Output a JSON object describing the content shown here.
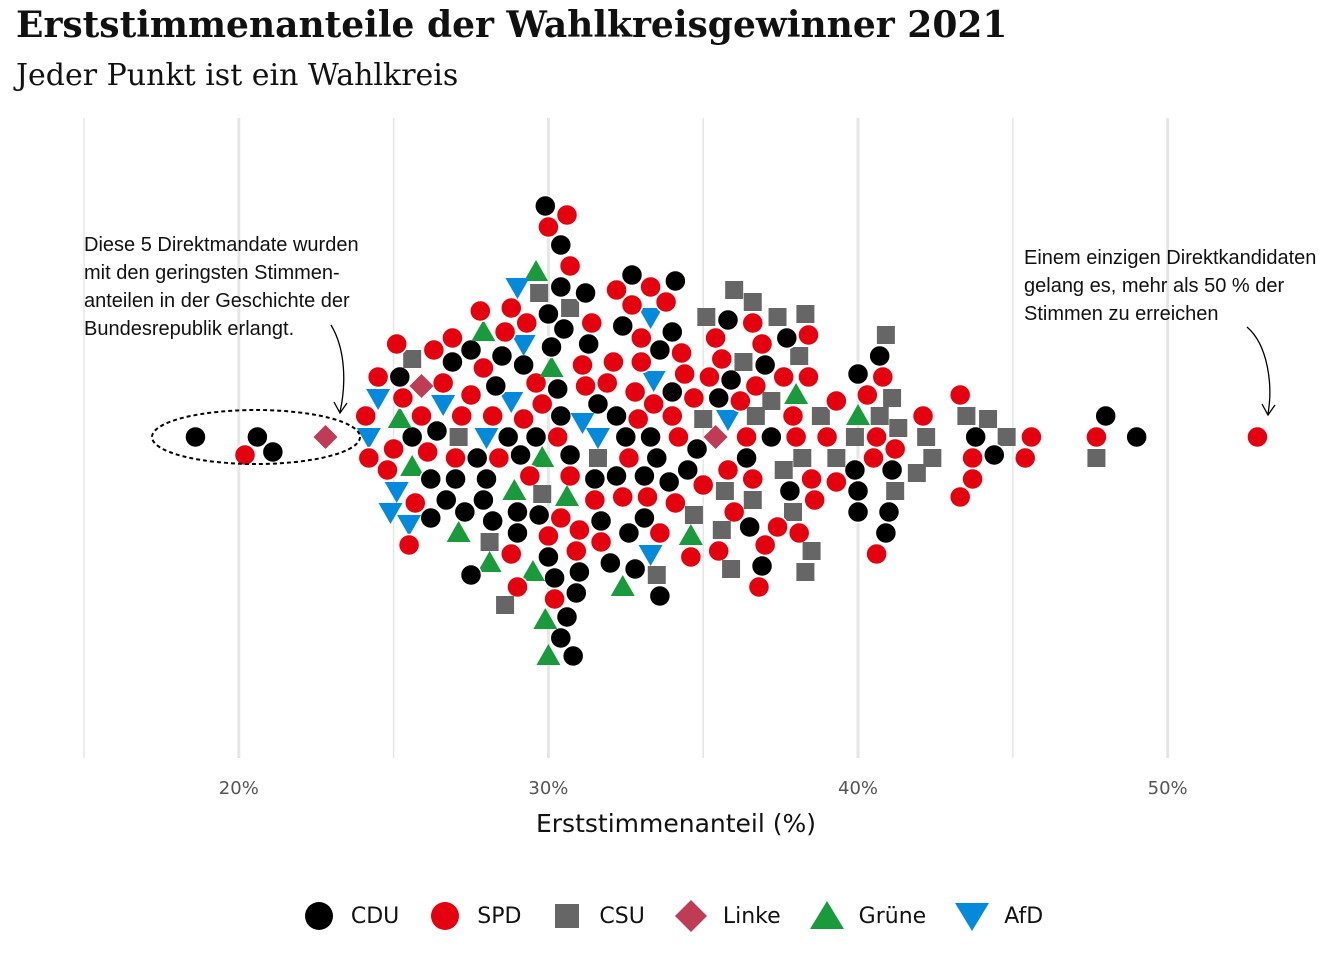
{
  "title": "Erststimmenanteile der Wahlkreisgewinner 2021",
  "subtitle": "Jeder Punkt ist ein Wahlkreis",
  "annotations": {
    "left": [
      "Diese 5 Direktmandate wurden",
      "mit den geringsten Stimmen-",
      "anteilen in der Geschichte der",
      "Bundesrepublik erlangt."
    ],
    "right": [
      "Einem einzigen Direktkandidaten",
      "gelang es, mehr als 50 % der",
      "Stimmen zu erreichen"
    ]
  },
  "parties": [
    {
      "key": "CDU",
      "label": "CDU",
      "shape": "circle",
      "color": "#000000"
    },
    {
      "key": "SPD",
      "label": "SPD",
      "shape": "circle",
      "color": "#e3000f"
    },
    {
      "key": "CSU",
      "label": "CSU",
      "shape": "square",
      "color": "#666666"
    },
    {
      "key": "Linke",
      "label": "Linke",
      "shape": "diamond",
      "color": "#be3c55"
    },
    {
      "key": "Gruene",
      "label": "Grüne",
      "shape": "triangle-up",
      "color": "#1a9a3c"
    },
    {
      "key": "AfD",
      "label": "AfD",
      "shape": "triangle-down",
      "color": "#0489db"
    }
  ],
  "chart_data": {
    "type": "scatter",
    "title": "Erststimmenanteile der Wahlkreisgewinner 2021",
    "subtitle": "Jeder Punkt ist ein Wahlkreis",
    "xlabel": "Erststimmenanteil (%)",
    "ylabel": "",
    "xlim": [
      15,
      53.5
    ],
    "x_ticks": [
      20,
      30,
      40,
      50
    ],
    "x_tick_labels": [
      "20%",
      "30%",
      "40%",
      "50%"
    ],
    "grid": "vertical",
    "legend_position": "bottom",
    "series": [
      {
        "name": "CDU",
        "values": [
          18.6,
          20.6,
          21.1,
          49.0,
          48.0,
          44.4,
          43.8,
          40.9,
          41.0,
          40.7,
          40.0,
          40.0,
          40.0,
          39.9,
          37.7,
          37.8,
          37.2,
          37.0,
          36.9,
          36.5,
          36.4,
          35.9,
          35.8,
          35.5,
          34.8,
          34.5,
          34.1,
          34.0,
          33.9,
          33.6,
          33.6,
          33.5,
          33.3,
          33.1,
          33.1,
          32.8,
          32.7,
          32.6,
          32.4,
          32.2,
          32.2,
          32.0,
          31.7,
          31.6,
          31.3,
          31.2,
          30.9,
          30.7,
          30.4,
          30.4,
          30.4,
          30.5,
          30.4,
          30.3,
          30.1,
          30.0,
          30.0,
          29.9,
          29.7,
          29.6,
          29.2,
          29.1,
          29.0,
          28.7,
          28.3,
          28.0,
          27.9,
          27.7,
          27.5,
          27.3,
          26.9,
          26.4,
          26.2,
          26.2,
          25.6,
          25.2,
          34.0,
          31.5,
          30.6,
          29.0,
          28.5,
          27.5,
          27.0,
          30.2,
          30.8,
          31.0,
          32.5,
          28.2,
          26.7,
          41.1
        ]
      },
      {
        "name": "SPD",
        "values": [
          20.2,
          52.9,
          47.7,
          45.6,
          45.4,
          43.7,
          43.7,
          43.3,
          43.3,
          42.1,
          41.2,
          40.8,
          40.6,
          40.6,
          40.5,
          40.3,
          39.3,
          39.3,
          39.0,
          38.6,
          38.5,
          38.4,
          38.4,
          38.1,
          38.0,
          37.6,
          37.4,
          37.0,
          36.9,
          36.8,
          36.7,
          36.6,
          36.6,
          36.4,
          36.2,
          36.0,
          35.6,
          35.5,
          35.4,
          35.0,
          34.7,
          34.6,
          34.4,
          34.2,
          34.1,
          34.0,
          33.8,
          33.6,
          33.4,
          33.3,
          33.2,
          33.0,
          32.9,
          32.8,
          32.6,
          32.4,
          32.2,
          32.1,
          31.9,
          31.7,
          31.4,
          31.2,
          31.0,
          30.9,
          30.7,
          30.6,
          30.4,
          30.3,
          30.2,
          30.0,
          29.8,
          29.6,
          29.4,
          29.2,
          29.0,
          28.8,
          28.6,
          28.4,
          28.2,
          27.9,
          27.8,
          27.5,
          27.2,
          26.9,
          26.6,
          26.3,
          26.1,
          25.9,
          25.7,
          25.5,
          25.3,
          25.1,
          24.8,
          24.5,
          24.2,
          24.1,
          30.0,
          31.5,
          32.7,
          34.3,
          35.8,
          37.9,
          28.8,
          27.0,
          25.0,
          35.2,
          33.0,
          31.1,
          29.3,
          30.7
        ]
      },
      {
        "name": "CSU",
        "values": [
          47.7,
          44.8,
          44.2,
          43.5,
          42.4,
          42.2,
          41.9,
          41.3,
          41.2,
          41.1,
          40.9,
          40.7,
          39.9,
          39.3,
          38.8,
          38.5,
          38.3,
          38.2,
          38.1,
          37.9,
          37.6,
          37.4,
          36.7,
          36.6,
          36.6,
          36.0,
          35.9,
          35.7,
          35.6,
          35.1,
          35.0,
          34.7,
          33.5,
          29.7,
          30.7,
          31.6,
          28.6,
          28.1,
          27.1,
          25.6,
          29.8,
          37.2,
          36.3,
          38.3
        ]
      },
      {
        "name": "Linke",
        "values": [
          22.8,
          25.9,
          35.4
        ]
      },
      {
        "name": "Grüne",
        "values": [
          40.0,
          38.0,
          34.6,
          32.4,
          30.6,
          30.1,
          30.0,
          29.9,
          29.6,
          29.5,
          28.9,
          28.1,
          27.9,
          27.1,
          25.6,
          25.2,
          29.8
        ]
      },
      {
        "name": "AfD",
        "values": [
          35.8,
          33.4,
          33.3,
          33.3,
          31.6,
          31.1,
          29.2,
          29.0,
          28.8,
          28.0,
          26.6,
          25.5,
          25.1,
          24.9,
          24.5,
          24.2
        ]
      }
    ]
  }
}
